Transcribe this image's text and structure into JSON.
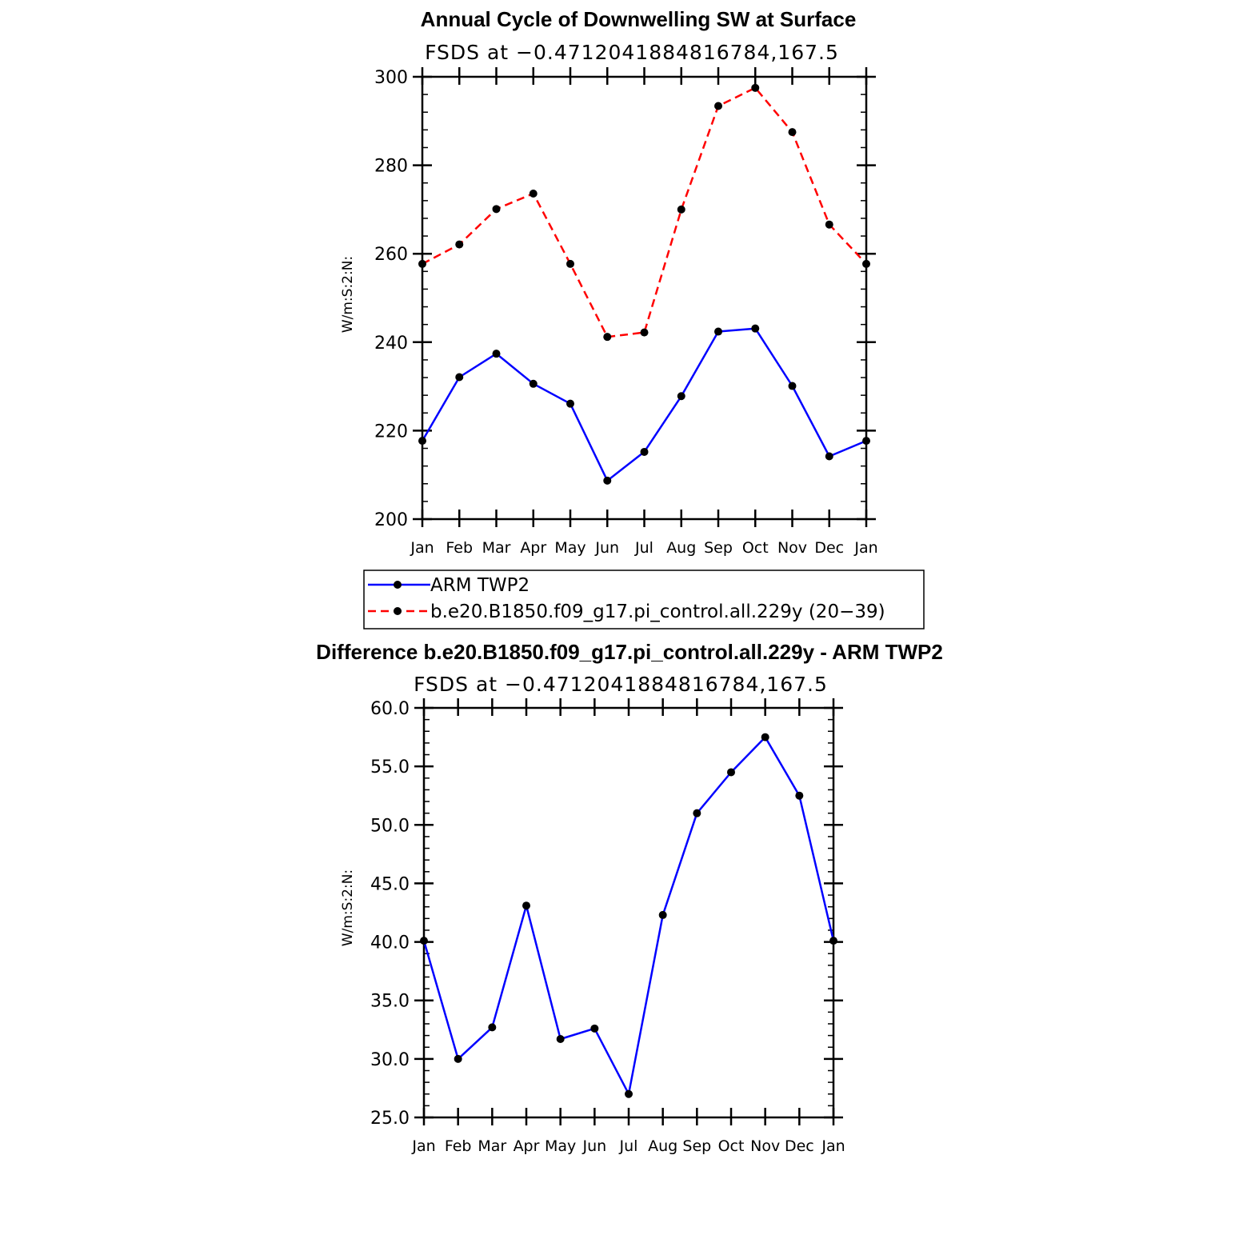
{
  "chart_data": [
    {
      "type": "line",
      "title": "Annual Cycle of Downwelling SW at Surface",
      "subtitle": "FSDS at −0.4712041884816784,167.5",
      "ylabel": "W/m:S:2:N:",
      "xlabel": "",
      "ylim": [
        200,
        300
      ],
      "yticks": [
        "200",
        "220",
        "240",
        "260",
        "280",
        "300"
      ],
      "yticks_values": [
        200,
        220,
        240,
        260,
        280,
        300
      ],
      "categories": [
        "Jan",
        "Feb",
        "Mar",
        "Apr",
        "May",
        "Jun",
        "Jul",
        "Aug",
        "Sep",
        "Oct",
        "Nov",
        "Dec",
        "Jan"
      ],
      "grid": false,
      "legend_position": "below",
      "series": [
        {
          "name": "ARM TWP2",
          "color": "#0000ff",
          "style": "solid",
          "values": [
            217.7,
            232.1,
            237.4,
            230.6,
            226.1,
            208.7,
            215.2,
            227.8,
            242.4,
            243.1,
            230.1,
            214.2,
            217.7
          ]
        },
        {
          "name": "b.e20.B1850.f09_g17.pi_control.all.229y (20−39)",
          "color": "#ff0000",
          "style": "dashed",
          "values": [
            257.7,
            262.1,
            270.1,
            273.6,
            257.7,
            241.2,
            242.2,
            270.0,
            293.4,
            297.5,
            287.5,
            266.6,
            257.7
          ]
        }
      ]
    },
    {
      "type": "line",
      "title": "Difference b.e20.B1850.f09_g17.pi_control.all.229y - ARM TWP2",
      "subtitle": "FSDS at −0.4712041884816784,167.5",
      "ylabel": "W/m:S:2:N:",
      "xlabel": "",
      "ylim": [
        25,
        60
      ],
      "yticks": [
        "25.0",
        "30.0",
        "35.0",
        "40.0",
        "45.0",
        "50.0",
        "55.0",
        "60.0"
      ],
      "yticks_values": [
        25,
        30,
        35,
        40,
        45,
        50,
        55,
        60
      ],
      "categories": [
        "Jan",
        "Feb",
        "Mar",
        "Apr",
        "May",
        "Jun",
        "Jul",
        "Aug",
        "Sep",
        "Oct",
        "Nov",
        "Dec",
        "Jan"
      ],
      "grid": false,
      "series": [
        {
          "color": "#0000ff",
          "style": "solid",
          "values": [
            40.1,
            30.0,
            32.7,
            43.1,
            31.7,
            32.6,
            27.0,
            42.3,
            51.0,
            54.5,
            57.5,
            52.5,
            40.1
          ]
        }
      ]
    }
  ]
}
